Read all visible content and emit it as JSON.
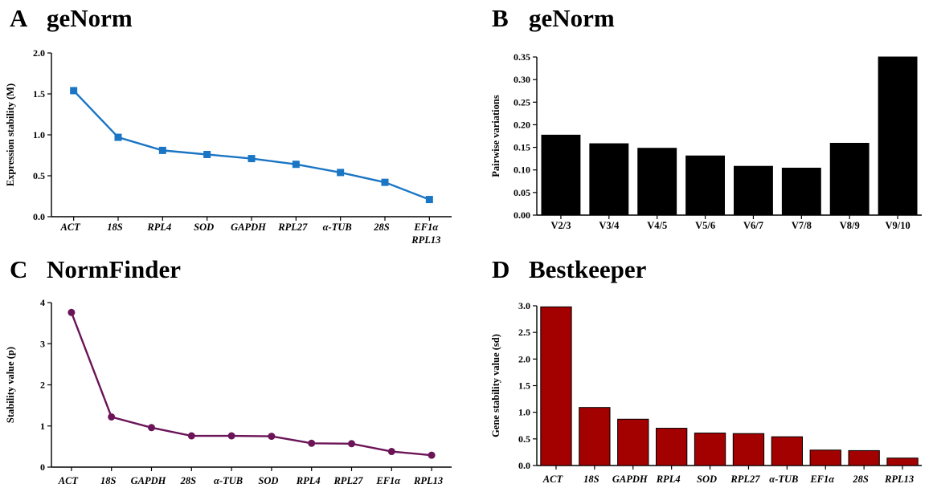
{
  "panels": [
    {
      "letter": "A",
      "title": "geNorm",
      "chart_data": {
        "type": "line",
        "ylabel": "Expression stability (M)",
        "ylim": [
          0,
          2.0
        ],
        "yticks": [
          "0.0",
          "0.5",
          "1.0",
          "1.5",
          "2.0"
        ],
        "categories": [
          "ACT",
          "18S",
          "RPL4",
          "SOD",
          "GAPDH",
          "RPL27",
          "α-TUB",
          "28S",
          "EF1α\nRPL13"
        ],
        "values": [
          1.54,
          0.97,
          0.81,
          0.76,
          0.71,
          0.64,
          0.54,
          0.42,
          0.21
        ],
        "marker": "square",
        "color": "#1a75c4",
        "italic_labels": true
      }
    },
    {
      "letter": "B",
      "title": "geNorm",
      "chart_data": {
        "type": "bar",
        "ylabel": "Pairwise variations",
        "ylim": [
          0,
          0.35
        ],
        "yticks": [
          "0.00",
          "0.05",
          "0.10",
          "0.15",
          "0.20",
          "0.25",
          "0.30",
          "0.35"
        ],
        "categories": [
          "V2/3",
          "V3/4",
          "V4/5",
          "V5/6",
          "V6/7",
          "V7/8",
          "V8/9",
          "V9/10"
        ],
        "values": [
          0.177,
          0.158,
          0.148,
          0.131,
          0.108,
          0.104,
          0.159,
          0.35
        ],
        "color": "#000000",
        "italic_labels": false
      }
    },
    {
      "letter": "C",
      "title": "NormFinder",
      "chart_data": {
        "type": "line",
        "ylabel": "Stability value (p)",
        "ylim": [
          0,
          4
        ],
        "yticks": [
          "0",
          "1",
          "2",
          "3",
          "4"
        ],
        "categories": [
          "ACT",
          "18S",
          "GAPDH",
          "28S",
          "α-TUB",
          "SOD",
          "RPL4",
          "RPL27",
          "EF1α",
          "RPL13"
        ],
        "values": [
          3.76,
          1.22,
          0.96,
          0.76,
          0.76,
          0.75,
          0.58,
          0.57,
          0.38,
          0.29
        ],
        "marker": "circle",
        "color": "#6b1457",
        "italic_labels": true
      }
    },
    {
      "letter": "D",
      "title": "Bestkeeper",
      "chart_data": {
        "type": "bar",
        "ylabel": "Gene stability value (sd)",
        "ylim": [
          0,
          3.0
        ],
        "yticks": [
          "0.0",
          "0.5",
          "1.0",
          "1.5",
          "2.0",
          "2.5",
          "3.0"
        ],
        "categories": [
          "ACT",
          "18S",
          "GAPDH",
          "RPL4",
          "SOD",
          "RPL27",
          "α-TUB",
          "EF1α",
          "28S",
          "RPL13"
        ],
        "values": [
          2.98,
          1.09,
          0.87,
          0.7,
          0.61,
          0.6,
          0.54,
          0.29,
          0.28,
          0.14
        ],
        "color": "#a30000",
        "italic_labels": true
      }
    }
  ]
}
